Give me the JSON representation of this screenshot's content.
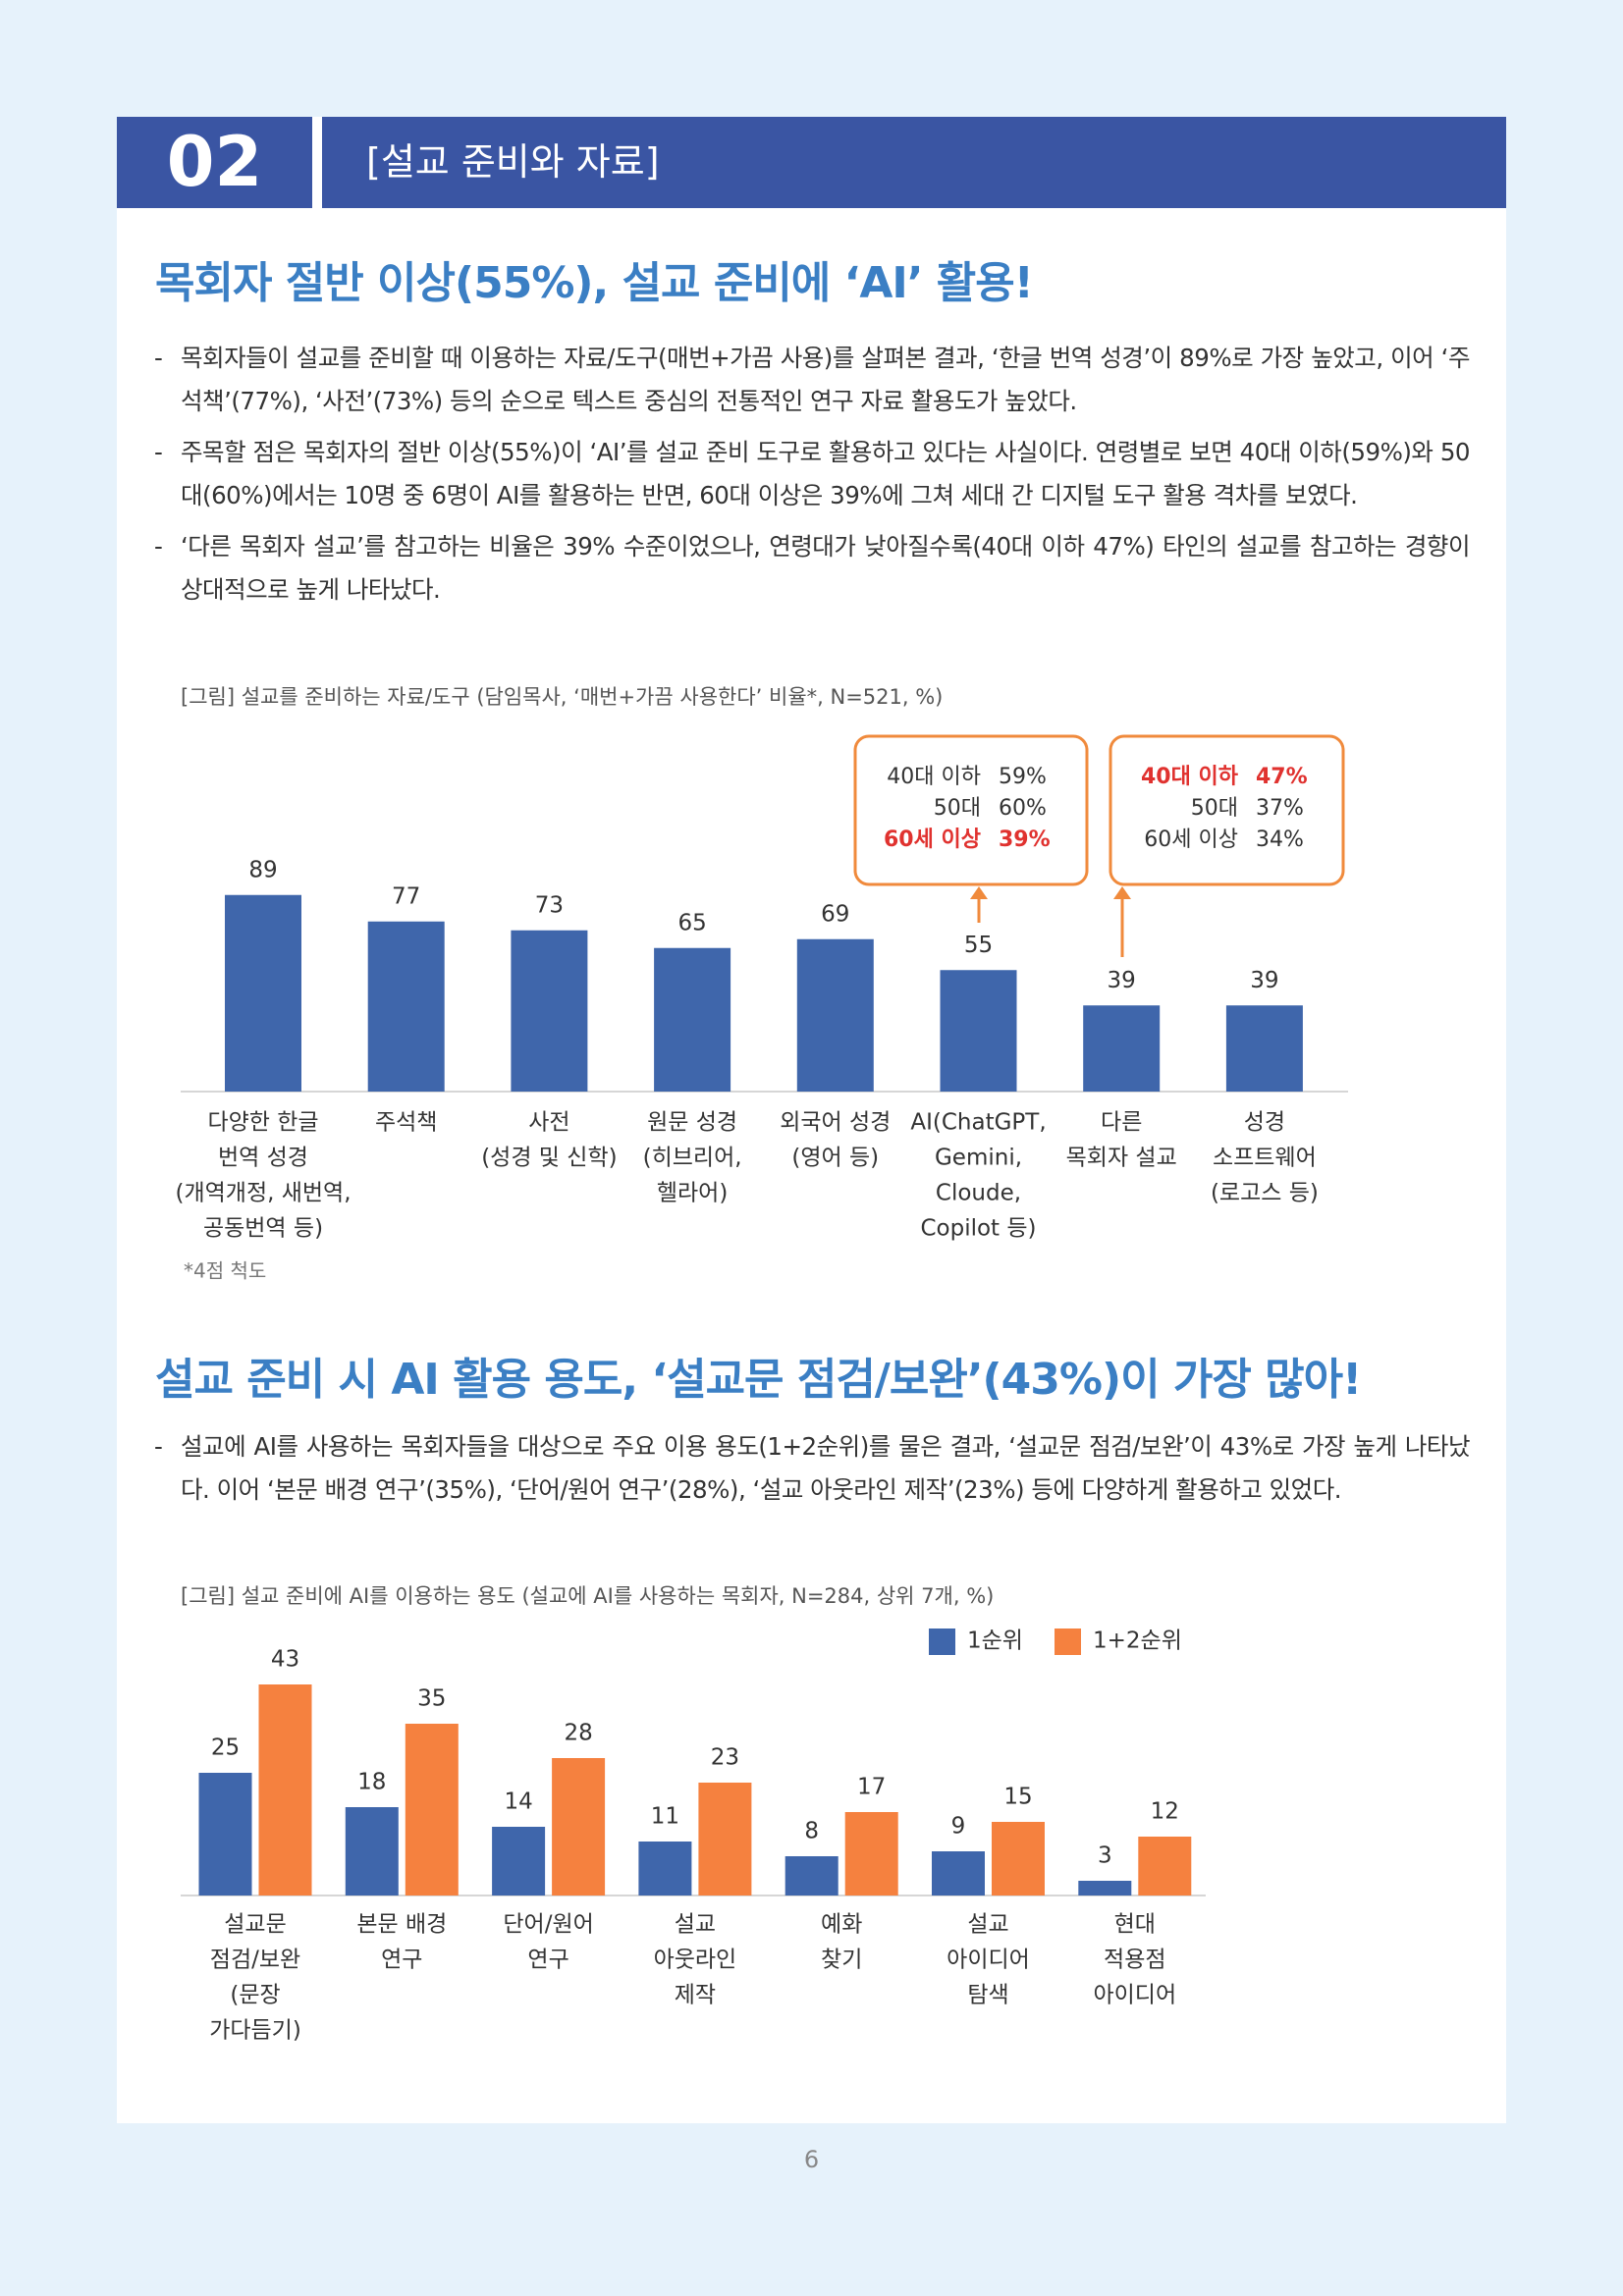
{
  "header": {
    "number": "02",
    "title": "[설교 준비와 자료]"
  },
  "sections": [
    {
      "title": "목회자 절반 이상(55%), 설교 준비에 ‘AI’ 활용!",
      "bullets": [
        "목회자들이 설교를 준비할 때 이용하는 자료/도구(매번+가끔 사용)를 살펴본 결과, ‘한글 번역 성경’이 89%로 가장 높았고, 이어 ‘주석책’(77%), ‘사전’(73%) 등의 순으로 텍스트 중심의 전통적인 연구 자료 활용도가 높았다.",
        "주목할 점은 목회자의 절반 이상(55%)이 ‘AI’를 설교 준비 도구로 활용하고 있다는 사실이다. 연령별로 보면 40대 이하(59%)와 50대(60%)에서는 10명 중 6명이 AI를 활용하는 반면, 60대 이상은 39%에 그쳐 세대 간 디지털 도구 활용 격차를 보였다.",
        "‘다른 목회자 설교’를 참고하는 비율은 39% 수준이었으나, 연령대가 낮아질수록(40대 이하 47%) 타인의 설교를 참고하는 경향이 상대적으로 높게 나타났다."
      ]
    },
    {
      "title": "설교 준비 시 AI 활용 용도, ‘설교문 점검/보완’(43%)이 가장 많아!",
      "bullets": [
        "설교에 AI를 사용하는 목회자들을 대상으로 주요 이용 용도(1+2순위)를 물은 결과, ‘설교문 점검/보완’이 43%로 가장 높게 나타났다. 이어 ‘본문 배경 연구’(35%), ‘단어/원어 연구’(28%), ‘설교 아웃라인 제작’(23%) 등에 다양하게 활용하고 있었다."
      ]
    }
  ],
  "chart_data": [
    {
      "type": "bar",
      "title": "[그림] 설교를 준비하는 자료/도구 (담임목사, ‘매번+가끔 사용한다’ 비율*, N=521, %)",
      "categories": [
        [
          "다양한 한글",
          "번역 성경",
          "(개역개정, 새번역,",
          "공동번역 등)"
        ],
        [
          "주석책"
        ],
        [
          "사전",
          "(성경 및 신학)"
        ],
        [
          "원문 성경",
          "(히브리어,",
          "헬라어)"
        ],
        [
          "외국어 성경",
          "(영어 등)"
        ],
        [
          "AI(ChatGPT,",
          "Gemini,",
          "Cloude,",
          "Copilot 등)"
        ],
        [
          "다른",
          "목회자 설교"
        ],
        [
          "성경",
          "소프트웨어",
          "(로고스 등)"
        ]
      ],
      "values": [
        89,
        77,
        73,
        65,
        69,
        55,
        39,
        39
      ],
      "color": "#3f66ab",
      "annotations": [
        {
          "lines": [
            {
              "label": "40대 이하",
              "value": "59%"
            },
            {
              "label": "50대",
              "value": "60%"
            },
            {
              "label": "60세 이상",
              "value": "39%",
              "highlight": true
            }
          ]
        },
        {
          "lines": [
            {
              "label": "40대 이하",
              "value": "47%",
              "highlight": true
            },
            {
              "label": "50대",
              "value": "37%"
            },
            {
              "label": "60세 이상",
              "value": "34%"
            }
          ]
        }
      ],
      "note": "*4점 척도"
    },
    {
      "type": "bar",
      "title": "[그림] 설교 준비에 AI를 이용하는 용도 (설교에 AI를 사용하는 목회자, N=284, 상위 7개, %)",
      "categories": [
        [
          "설교문",
          "점검/보완",
          "(문장",
          "가다듬기)"
        ],
        [
          "본문 배경",
          "연구"
        ],
        [
          "단어/원어",
          "연구"
        ],
        [
          "설교",
          "아웃라인",
          "제작"
        ],
        [
          "예화",
          "찾기"
        ],
        [
          "설교",
          "아이디어",
          "탐색"
        ],
        [
          "현대",
          "적용점",
          "아이디어"
        ]
      ],
      "series": [
        {
          "name": "1순위",
          "color": "#3f66ab",
          "values": [
            25,
            18,
            14,
            11,
            8,
            9,
            3
          ]
        },
        {
          "name": "1+2순위",
          "color": "#f5813f",
          "values": [
            43,
            35,
            28,
            23,
            17,
            15,
            12
          ]
        }
      ]
    }
  ],
  "footer": {
    "page": "6"
  }
}
